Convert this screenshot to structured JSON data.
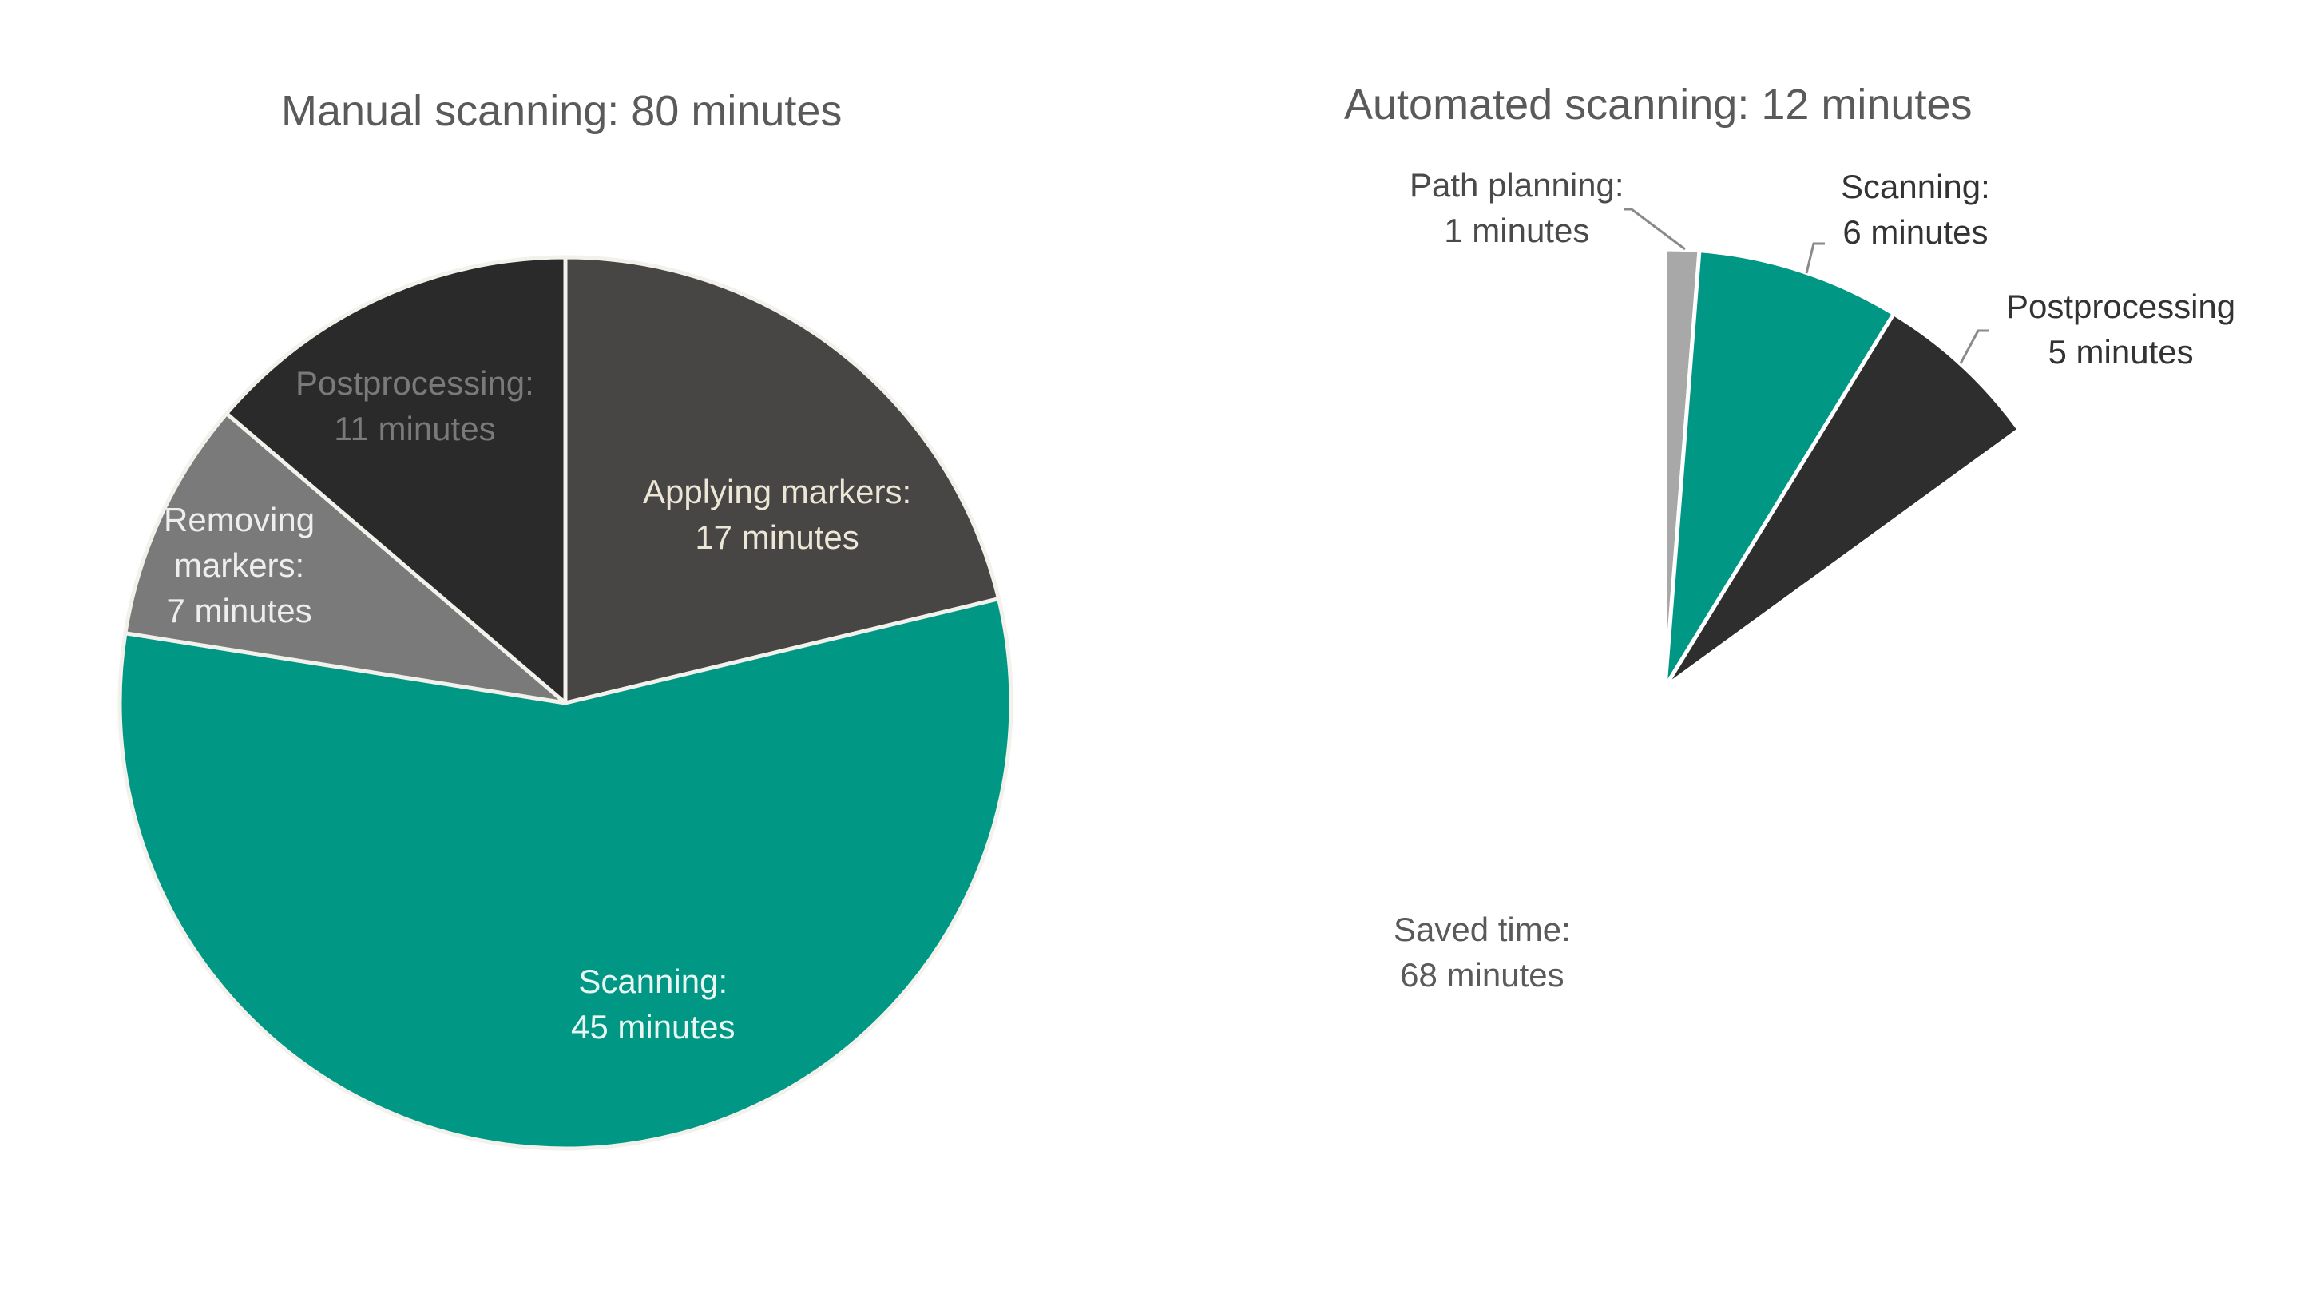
{
  "chart_data": [
    {
      "type": "pie",
      "title": "Manual scanning: 80 minutes",
      "start_angle_deg": 0,
      "direction": "clockwise",
      "slices": [
        {
          "label": "Applying markers",
          "value": 17,
          "unit": "minutes",
          "color": "#474645",
          "text_color": "#ece6d6",
          "display": [
            "Applying markers:",
            "17 minutes"
          ]
        },
        {
          "label": "Scanning",
          "value": 45,
          "unit": "minutes",
          "color": "#009885",
          "text_color": "#eaf6f2",
          "display": [
            "Scanning:",
            "45 minutes"
          ]
        },
        {
          "label": "Removing markers",
          "value": 7,
          "unit": "minutes",
          "color": "#7a7a7a",
          "text_color": "#eeeeee",
          "display": [
            "Removing",
            "markers:",
            "7 minutes"
          ]
        },
        {
          "label": "Postprocessing",
          "value": 11,
          "unit": "minutes",
          "color": "#2b2a2a",
          "text_color": "#7a7a7a",
          "display": [
            "Postprocessing:",
            "11 minutes"
          ]
        }
      ],
      "total": 80
    },
    {
      "type": "pie",
      "title": "Automated scanning: 12 minutes",
      "start_angle_deg": 0,
      "direction": "clockwise",
      "slices": [
        {
          "label": "Path planning",
          "value": 1,
          "unit": "minutes",
          "color": "#a8a8a8",
          "text_color": "#4a4a4a",
          "display": [
            "Path planning:",
            "1 minutes"
          ]
        },
        {
          "label": "Scanning",
          "value": 6,
          "unit": "minutes",
          "color": "#009885",
          "text_color": "#333333",
          "display": [
            "Scanning:",
            "6 minutes"
          ]
        },
        {
          "label": "Postprocessing",
          "value": 5,
          "unit": "minutes",
          "color": "#2e2e2e",
          "text_color": "#333333",
          "display": [
            "Postprocessing",
            "5 minutes"
          ]
        },
        {
          "label": "Saved time",
          "value": 68,
          "unit": "minutes",
          "color": "#ffffff",
          "text_color": "#5a5a5a",
          "display": [
            "Saved time:",
            "68 minutes"
          ]
        }
      ],
      "total": 80
    }
  ]
}
